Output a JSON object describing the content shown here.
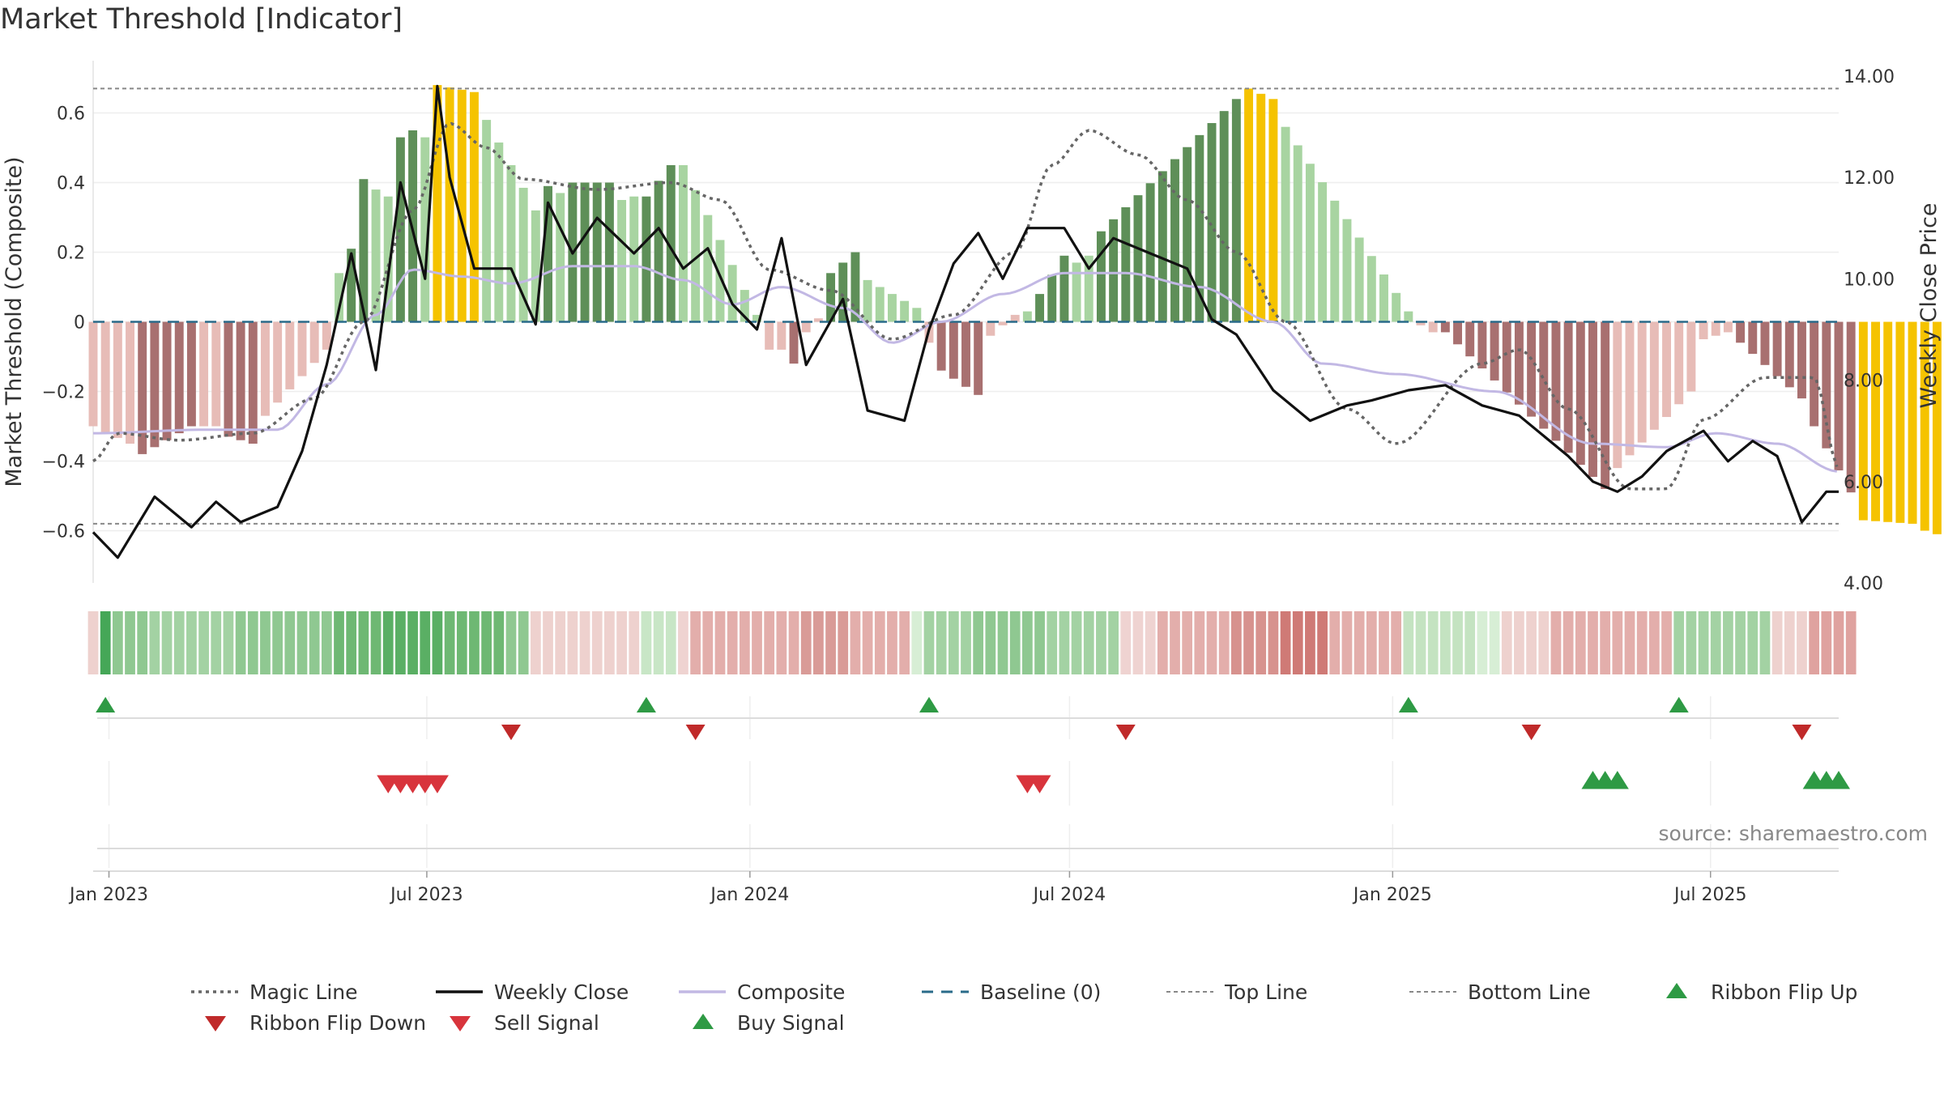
{
  "page": {
    "title": "Market Threshold [Indicator]",
    "source": "source: sharemaestro.com"
  },
  "colors": {
    "gold": "#f5c300",
    "dark_green": "#5e8f58",
    "light_green": "#a8d4a1",
    "dark_red": "#a87070",
    "light_red": "#e7bcb7",
    "magic": "#666666",
    "close": "#111111",
    "composite": "#c2b8e4",
    "baseline": "#2a6b8a",
    "buy": "#2e9a44",
    "sell": "#d8343c"
  },
  "chart_data": {
    "type": "bar",
    "title": "Market Threshold [Indicator]",
    "ylabel": "Market Threshold (Composite)",
    "y2label": "Weekly Close Price",
    "ylim": [
      -0.75,
      0.75
    ],
    "y2lim": [
      4.0,
      14.3
    ],
    "yticks": [
      -0.6,
      -0.4,
      -0.2,
      0,
      0.2,
      0.4,
      0.6
    ],
    "ytick_labels": [
      "−0.6",
      "−0.4",
      "−0.2",
      "0",
      "0.2",
      "0.4",
      "0.6"
    ],
    "y2ticks": [
      4,
      6,
      8,
      10,
      12,
      14
    ],
    "y2tick_labels": [
      "4.00",
      "6.00",
      "8.00",
      "10.00",
      "12.00",
      "14.00"
    ],
    "xticks": [
      {
        "date": "2023-01-01",
        "label": "Jan 2023"
      },
      {
        "date": "2023-07-01",
        "label": "Jul 2023"
      },
      {
        "date": "2024-01-01",
        "label": "Jan 2024"
      },
      {
        "date": "2024-07-01",
        "label": "Jul 2024"
      },
      {
        "date": "2025-01-01",
        "label": "Jan 2025"
      },
      {
        "date": "2025-07-01",
        "label": "Jul 2025"
      }
    ],
    "x_start": "2022-12-23",
    "x_end": "2025-09-12",
    "top_line": 0.67,
    "bottom_line": -0.58,
    "grid": true,
    "composite_anchors": [
      [
        "2022-12-23",
        -0.32
      ],
      [
        "2023-02-24",
        -0.31
      ],
      [
        "2023-04-07",
        -0.31
      ],
      [
        "2023-05-05",
        -0.18
      ],
      [
        "2023-06-02",
        0.02
      ],
      [
        "2023-06-23",
        0.15
      ],
      [
        "2023-07-21",
        0.13
      ],
      [
        "2023-08-18",
        0.11
      ],
      [
        "2023-09-22",
        0.16
      ],
      [
        "2023-10-27",
        0.16
      ],
      [
        "2023-11-24",
        0.12
      ],
      [
        "2023-12-22",
        0.05
      ],
      [
        "2024-01-19",
        0.1
      ],
      [
        "2024-02-23",
        0.04
      ],
      [
        "2024-03-22",
        -0.06
      ],
      [
        "2024-04-19",
        0.0
      ],
      [
        "2024-05-24",
        0.08
      ],
      [
        "2024-06-28",
        0.14
      ],
      [
        "2024-08-02",
        0.14
      ],
      [
        "2024-09-13",
        0.1
      ],
      [
        "2024-10-25",
        0.0
      ],
      [
        "2024-11-22",
        -0.12
      ],
      [
        "2025-01-03",
        -0.15
      ],
      [
        "2025-02-28",
        -0.2
      ],
      [
        "2025-04-25",
        -0.35
      ],
      [
        "2025-06-06",
        -0.36
      ],
      [
        "2025-07-04",
        -0.32
      ],
      [
        "2025-08-08",
        -0.35
      ],
      [
        "2025-09-12",
        -0.43
      ]
    ],
    "magic_anchors": [
      [
        "2022-12-23",
        -0.4
      ],
      [
        "2023-01-06",
        -0.32
      ],
      [
        "2023-02-10",
        -0.34
      ],
      [
        "2023-03-24",
        -0.32
      ],
      [
        "2023-04-28",
        -0.22
      ],
      [
        "2023-05-26",
        0.0
      ],
      [
        "2023-06-23",
        0.32
      ],
      [
        "2023-07-14",
        0.57
      ],
      [
        "2023-08-04",
        0.5
      ],
      [
        "2023-08-25",
        0.41
      ],
      [
        "2023-10-06",
        0.38
      ],
      [
        "2023-11-17",
        0.4
      ],
      [
        "2023-12-15",
        0.35
      ],
      [
        "2024-01-12",
        0.15
      ],
      [
        "2024-02-16",
        0.09
      ],
      [
        "2024-03-22",
        -0.05
      ],
      [
        "2024-04-26",
        0.02
      ],
      [
        "2024-05-31",
        0.2
      ],
      [
        "2024-06-21",
        0.45
      ],
      [
        "2024-07-12",
        0.55
      ],
      [
        "2024-08-09",
        0.48
      ],
      [
        "2024-09-06",
        0.35
      ],
      [
        "2024-10-04",
        0.2
      ],
      [
        "2024-11-01",
        0.0
      ],
      [
        "2024-12-06",
        -0.25
      ],
      [
        "2025-01-03",
        -0.35
      ],
      [
        "2025-02-21",
        -0.12
      ],
      [
        "2025-03-14",
        -0.08
      ],
      [
        "2025-04-11",
        -0.25
      ],
      [
        "2025-05-16",
        -0.48
      ],
      [
        "2025-06-06",
        -0.48
      ],
      [
        "2025-06-27",
        -0.28
      ],
      [
        "2025-08-01",
        -0.16
      ],
      [
        "2025-08-29",
        -0.16
      ],
      [
        "2025-09-12",
        -0.42
      ]
    ],
    "close_anchors": [
      [
        "2022-12-23",
        5.0
      ],
      [
        "2023-01-06",
        4.5
      ],
      [
        "2023-01-27",
        5.7
      ],
      [
        "2023-02-17",
        5.1
      ],
      [
        "2023-03-03",
        5.6
      ],
      [
        "2023-03-17",
        5.2
      ],
      [
        "2023-04-07",
        5.5
      ],
      [
        "2023-04-21",
        6.6
      ],
      [
        "2023-05-05",
        8.3
      ],
      [
        "2023-05-19",
        10.5
      ],
      [
        "2023-06-02",
        8.2
      ],
      [
        "2023-06-16",
        11.9
      ],
      [
        "2023-06-30",
        10.0
      ],
      [
        "2023-07-07",
        13.8
      ],
      [
        "2023-07-14",
        12.0
      ],
      [
        "2023-07-28",
        10.2
      ],
      [
        "2023-08-18",
        10.2
      ],
      [
        "2023-09-01",
        9.1
      ],
      [
        "2023-09-08",
        11.5
      ],
      [
        "2023-09-22",
        10.5
      ],
      [
        "2023-10-06",
        11.2
      ],
      [
        "2023-10-27",
        10.5
      ],
      [
        "2023-11-10",
        11.0
      ],
      [
        "2023-11-24",
        10.2
      ],
      [
        "2023-12-08",
        10.6
      ],
      [
        "2023-12-22",
        9.5
      ],
      [
        "2024-01-05",
        9.0
      ],
      [
        "2024-01-19",
        10.8
      ],
      [
        "2024-02-02",
        8.3
      ],
      [
        "2024-02-23",
        9.6
      ],
      [
        "2024-03-08",
        7.4
      ],
      [
        "2024-03-29",
        7.2
      ],
      [
        "2024-04-12",
        9.0
      ],
      [
        "2024-04-26",
        10.3
      ],
      [
        "2024-05-10",
        10.9
      ],
      [
        "2024-05-24",
        10.0
      ],
      [
        "2024-06-07",
        11.0
      ],
      [
        "2024-06-28",
        11.0
      ],
      [
        "2024-07-12",
        10.2
      ],
      [
        "2024-07-26",
        10.8
      ],
      [
        "2024-08-16",
        10.5
      ],
      [
        "2024-09-06",
        10.2
      ],
      [
        "2024-09-20",
        9.2
      ],
      [
        "2024-10-04",
        8.9
      ],
      [
        "2024-10-25",
        7.8
      ],
      [
        "2024-11-15",
        7.2
      ],
      [
        "2024-12-06",
        7.5
      ],
      [
        "2024-12-20",
        7.6
      ],
      [
        "2025-01-10",
        7.8
      ],
      [
        "2025-01-31",
        7.9
      ],
      [
        "2025-02-21",
        7.5
      ],
      [
        "2025-03-14",
        7.3
      ],
      [
        "2025-03-28",
        6.9
      ],
      [
        "2025-04-11",
        6.5
      ],
      [
        "2025-04-25",
        6.0
      ],
      [
        "2025-05-09",
        5.8
      ],
      [
        "2025-05-23",
        6.1
      ],
      [
        "2025-06-06",
        6.6
      ],
      [
        "2025-06-27",
        7.0
      ],
      [
        "2025-07-11",
        6.4
      ],
      [
        "2025-07-25",
        6.8
      ],
      [
        "2025-08-08",
        6.5
      ],
      [
        "2025-08-22",
        5.2
      ],
      [
        "2025-09-05",
        5.8
      ],
      [
        "2025-09-12",
        5.8
      ]
    ],
    "bar_groups": [
      {
        "start": "2022-12-23",
        "end": "2023-01-13",
        "from": -0.3,
        "to": -0.35,
        "tone": "light_red"
      },
      {
        "start": "2023-01-20",
        "end": "2023-02-17",
        "from": -0.38,
        "to": -0.3,
        "tone": "dark_red"
      },
      {
        "start": "2023-02-24",
        "end": "2023-03-03",
        "from": -0.3,
        "to": -0.3,
        "tone": "light_red"
      },
      {
        "start": "2023-03-10",
        "end": "2023-03-24",
        "from": -0.33,
        "to": -0.35,
        "tone": "dark_red"
      },
      {
        "start": "2023-03-31",
        "end": "2023-05-05",
        "from": -0.27,
        "to": -0.08,
        "tone": "light_red"
      },
      {
        "start": "2023-05-12",
        "end": "2023-05-12",
        "from": 0.14,
        "to": 0.14,
        "tone": "light_green"
      },
      {
        "start": "2023-05-19",
        "end": "2023-05-26",
        "from": 0.21,
        "to": 0.41,
        "tone": "dark_green"
      },
      {
        "start": "2023-06-02",
        "end": "2023-06-09",
        "from": 0.38,
        "to": 0.36,
        "tone": "light_green"
      },
      {
        "start": "2023-06-16",
        "end": "2023-06-23",
        "from": 0.53,
        "to": 0.55,
        "tone": "dark_green"
      },
      {
        "start": "2023-06-30",
        "end": "2023-06-30",
        "from": 0.53,
        "to": 0.53,
        "tone": "light_green"
      },
      {
        "start": "2023-07-07",
        "end": "2023-07-28",
        "from": 0.68,
        "to": 0.66,
        "tone": "gold"
      },
      {
        "start": "2023-08-04",
        "end": "2023-09-01",
        "from": 0.58,
        "to": 0.32,
        "tone": "light_green"
      },
      {
        "start": "2023-09-08",
        "end": "2023-09-08",
        "from": 0.39,
        "to": 0.39,
        "tone": "dark_green"
      },
      {
        "start": "2023-09-15",
        "end": "2023-09-15",
        "from": 0.37,
        "to": 0.37,
        "tone": "light_green"
      },
      {
        "start": "2023-09-22",
        "end": "2023-10-13",
        "from": 0.4,
        "to": 0.4,
        "tone": "dark_green"
      },
      {
        "start": "2023-10-20",
        "end": "2023-10-27",
        "from": 0.35,
        "to": 0.36,
        "tone": "light_green"
      },
      {
        "start": "2023-11-03",
        "end": "2023-11-17",
        "from": 0.36,
        "to": 0.45,
        "tone": "dark_green"
      },
      {
        "start": "2023-11-24",
        "end": "2024-01-05",
        "from": 0.45,
        "to": 0.02,
        "tone": "light_green"
      },
      {
        "start": "2024-01-12",
        "end": "2024-01-19",
        "from": -0.08,
        "to": -0.08,
        "tone": "light_red"
      },
      {
        "start": "2024-01-26",
        "end": "2024-01-26",
        "from": -0.12,
        "to": -0.12,
        "tone": "dark_red"
      },
      {
        "start": "2024-02-02",
        "end": "2024-02-09",
        "from": -0.03,
        "to": 0.01,
        "tone": "light_red"
      },
      {
        "start": "2024-02-16",
        "end": "2024-03-01",
        "from": 0.14,
        "to": 0.2,
        "tone": "dark_green"
      },
      {
        "start": "2024-03-08",
        "end": "2024-04-05",
        "from": 0.12,
        "to": 0.04,
        "tone": "light_green"
      },
      {
        "start": "2024-04-12",
        "end": "2024-04-12",
        "from": -0.06,
        "to": -0.06,
        "tone": "light_red"
      },
      {
        "start": "2024-04-19",
        "end": "2024-05-10",
        "from": -0.14,
        "to": -0.21,
        "tone": "dark_red"
      },
      {
        "start": "2024-05-17",
        "end": "2024-05-31",
        "from": -0.04,
        "to": 0.02,
        "tone": "light_red"
      },
      {
        "start": "2024-06-07",
        "end": "2024-06-07",
        "from": 0.03,
        "to": 0.03,
        "tone": "light_green"
      },
      {
        "start": "2024-06-14",
        "end": "2024-06-28",
        "from": 0.08,
        "to": 0.19,
        "tone": "dark_green"
      },
      {
        "start": "2024-07-05",
        "end": "2024-07-12",
        "from": 0.17,
        "to": 0.19,
        "tone": "light_green"
      },
      {
        "start": "2024-07-19",
        "end": "2024-10-04",
        "from": 0.26,
        "to": 0.64,
        "tone": "dark_green"
      },
      {
        "start": "2024-10-11",
        "end": "2024-10-25",
        "from": 0.67,
        "to": 0.64,
        "tone": "gold"
      },
      {
        "start": "2024-11-01",
        "end": "2025-01-10",
        "from": 0.56,
        "to": 0.03,
        "tone": "light_green"
      },
      {
        "start": "2025-01-17",
        "end": "2025-01-24",
        "from": -0.01,
        "to": -0.03,
        "tone": "light_red"
      },
      {
        "start": "2025-01-31",
        "end": "2025-05-02",
        "from": -0.03,
        "to": -0.48,
        "tone": "dark_red"
      },
      {
        "start": "2025-05-09",
        "end": "2025-06-20",
        "from": -0.42,
        "to": -0.2,
        "tone": "light_red"
      },
      {
        "start": "2025-06-27",
        "end": "2025-07-11",
        "from": -0.05,
        "to": -0.03,
        "tone": "light_red"
      },
      {
        "start": "2025-07-18",
        "end": "2025-08-22",
        "from": -0.06,
        "to": -0.22,
        "tone": "dark_red"
      },
      {
        "start": "2025-08-29",
        "end": "2025-09-19",
        "from": -0.3,
        "to": -0.49,
        "tone": "dark_red"
      },
      {
        "start": "2025-09-26",
        "end": "2025-10-24",
        "from": -0.57,
        "to": -0.58,
        "tone": "gold"
      },
      {
        "start": "2025-10-31",
        "end": "2025-11-14",
        "from": -0.6,
        "to": -0.62,
        "tone": "gold"
      }
    ],
    "ribbon": [
      [
        "2022-12-23",
        "#eed1ce"
      ],
      [
        "2022-12-30",
        "#45a757"
      ],
      [
        "2023-01-06",
        "#8fc891"
      ],
      [
        "2023-01-27",
        "#a3d2a3"
      ],
      [
        "2023-03-17",
        "#8fc891"
      ],
      [
        "2023-05-12",
        "#6eb873"
      ],
      [
        "2023-06-09",
        "#5aaf64"
      ],
      [
        "2023-07-14",
        "#6eb873"
      ],
      [
        "2023-08-18",
        "#8fc891"
      ],
      [
        "2023-09-01",
        "#eed1ce"
      ],
      [
        "2023-11-03",
        "#c8e6c6"
      ],
      [
        "2023-11-24",
        "#efd3d1"
      ],
      [
        "2023-12-01",
        "#e3aeab"
      ],
      [
        "2024-02-02",
        "#d99b97"
      ],
      [
        "2024-03-01",
        "#e3aeab"
      ],
      [
        "2024-04-05",
        "#d7eed5"
      ],
      [
        "2024-04-12",
        "#a3d2a3"
      ],
      [
        "2024-05-10",
        "#8fc891"
      ],
      [
        "2024-06-21",
        "#a3d2a3"
      ],
      [
        "2024-08-02",
        "#efd3d1"
      ],
      [
        "2024-08-23",
        "#e3aeab"
      ],
      [
        "2024-10-04",
        "#d7928e"
      ],
      [
        "2024-11-01",
        "#cf7a76"
      ],
      [
        "2024-11-29",
        "#e3aeab"
      ],
      [
        "2025-01-10",
        "#c4e3c1"
      ],
      [
        "2025-02-21",
        "#d7eed5"
      ],
      [
        "2025-03-07",
        "#eed1ce"
      ],
      [
        "2025-04-04",
        "#e3aeab"
      ],
      [
        "2025-06-13",
        "#a3d2a3"
      ],
      [
        "2025-08-08",
        "#eed1ce"
      ],
      [
        "2025-08-29",
        "#dfa29f"
      ]
    ],
    "ribbon_flip_up": [
      "2022-12-30",
      "2023-11-03",
      "2024-04-12",
      "2025-01-10",
      "2025-06-13"
    ],
    "ribbon_flip_down": [
      "2023-08-18",
      "2023-12-01",
      "2024-08-02",
      "2025-03-21",
      "2025-08-22"
    ],
    "sell_signals": [
      "2023-06-09",
      "2023-06-16",
      "2023-06-23",
      "2023-06-30",
      "2023-07-07",
      "2024-06-07",
      "2024-06-14"
    ],
    "buy_signals": [
      "2025-04-25",
      "2025-05-02",
      "2025-05-09",
      "2025-08-29",
      "2025-09-05",
      "2025-09-12"
    ],
    "legend": [
      {
        "label": "Magic Line",
        "kind": "dot-line",
        "color": "#666666"
      },
      {
        "label": "Weekly Close",
        "kind": "solid-line",
        "color": "#111111"
      },
      {
        "label": "Composite",
        "kind": "solid-line",
        "color": "#c2b8e4"
      },
      {
        "label": "Baseline (0)",
        "kind": "dash-line",
        "color": "#2a6b8a"
      },
      {
        "label": "Top Line",
        "kind": "fine-dash",
        "color": "#888888"
      },
      {
        "label": "Bottom Line",
        "kind": "fine-dash",
        "color": "#888888"
      },
      {
        "label": "Ribbon Flip Up",
        "kind": "tri-up",
        "color": "#2e9a44"
      },
      {
        "label": "Ribbon Flip Down",
        "kind": "tri-down",
        "color": "#c02a2a"
      },
      {
        "label": "Sell Signal",
        "kind": "tri-down",
        "color": "#d8343c"
      },
      {
        "label": "Buy Signal",
        "kind": "tri-up",
        "color": "#2e9a44"
      }
    ],
    "legend_placement": "bottom"
  }
}
